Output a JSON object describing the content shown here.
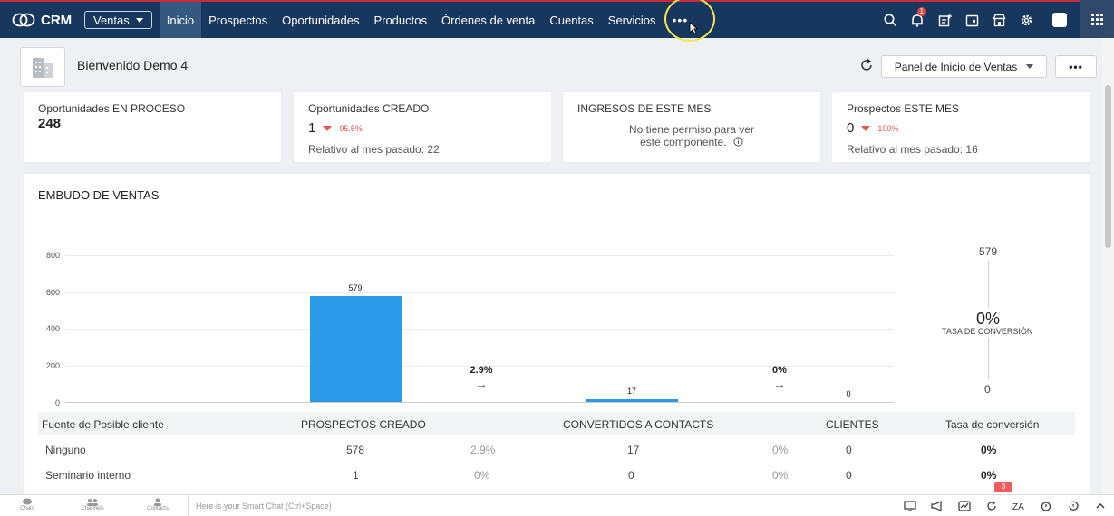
{
  "app": {
    "name": "CRM",
    "module": "Ventas"
  },
  "nav": {
    "items": [
      "Inicio",
      "Prospectos",
      "Oportunidades",
      "Productos",
      "Órdenes de venta",
      "Cuentas",
      "Servicios"
    ],
    "more": "•••",
    "active": 0
  },
  "notifications": {
    "count": "1"
  },
  "header": {
    "welcome": "Bienvenido Demo 4",
    "dashboard": "Panel de Inicio de Ventas",
    "more": "•••"
  },
  "kpis": [
    {
      "title": "Oportunidades EN PROCESO",
      "value": "248"
    },
    {
      "title": "Oportunidades CREADO",
      "value": "1",
      "change": "95.5%",
      "sub": "Relativo al mes pasado: 22"
    },
    {
      "title": "INGRESOS DE ESTE MES",
      "message_line1": "No tiene permiso para ver",
      "message_line2": "este componente."
    },
    {
      "title": "Prospectos ESTE MES",
      "value": "0",
      "change": "100%",
      "sub": "Relativo al mes pasado: 16"
    }
  ],
  "funnel": {
    "title": "EMBUDO DE VENTAS",
    "steps": [
      {
        "from": "PROSPECTOS CREADO",
        "value": 579
      },
      {
        "conversion": "2.9%"
      },
      {
        "from": "CONVERTIDOS A CONTACTS",
        "value": 17
      },
      {
        "conversion": "0%"
      },
      {
        "from": "CLIENTES",
        "value": 0
      }
    ],
    "overall": {
      "top": "579",
      "rate": "0%",
      "label": "TASA DE CONVERSIÓN",
      "bottom": "0"
    }
  },
  "chart_data": {
    "type": "bar",
    "categories": [
      "PROSPECTOS CREADO",
      "CONVERTIDOS A CONTACTS",
      "CLIENTES"
    ],
    "values": [
      579,
      17,
      0
    ],
    "conversions": [
      "2.9%",
      "0%"
    ],
    "ylim": [
      0,
      800
    ],
    "yticks": [
      "0",
      "200",
      "400",
      "600",
      "800"
    ],
    "grid": true
  },
  "table": {
    "headers": [
      "Fuente de Posible cliente",
      "PROSPECTOS CREADO",
      "CONVERTIDOS A CONTACTS",
      "CLIENTES",
      "Tasa de conversión"
    ],
    "rows": [
      {
        "source": "Ninguno",
        "created": "578",
        "conv1": "2.9%",
        "contacts": "17",
        "conv2": "0%",
        "clients": "0",
        "rate": "0%"
      },
      {
        "source": "Seminario interno",
        "created": "1",
        "conv1": "0%",
        "contacts": "0",
        "conv2": "0%",
        "clients": "0",
        "rate": "0%"
      }
    ]
  },
  "bottom": {
    "chats": "Chats",
    "channels": "Channels",
    "contacts": "Contacts",
    "smart_chat_placeholder": "Here is your Smart Chat (Ctrl+Space)",
    "red_count": "3"
  },
  "colors": {
    "nav_bg": "#18375e",
    "nav_active": "#35587f",
    "bar": "#2b9be7",
    "decline": "#e55353"
  }
}
